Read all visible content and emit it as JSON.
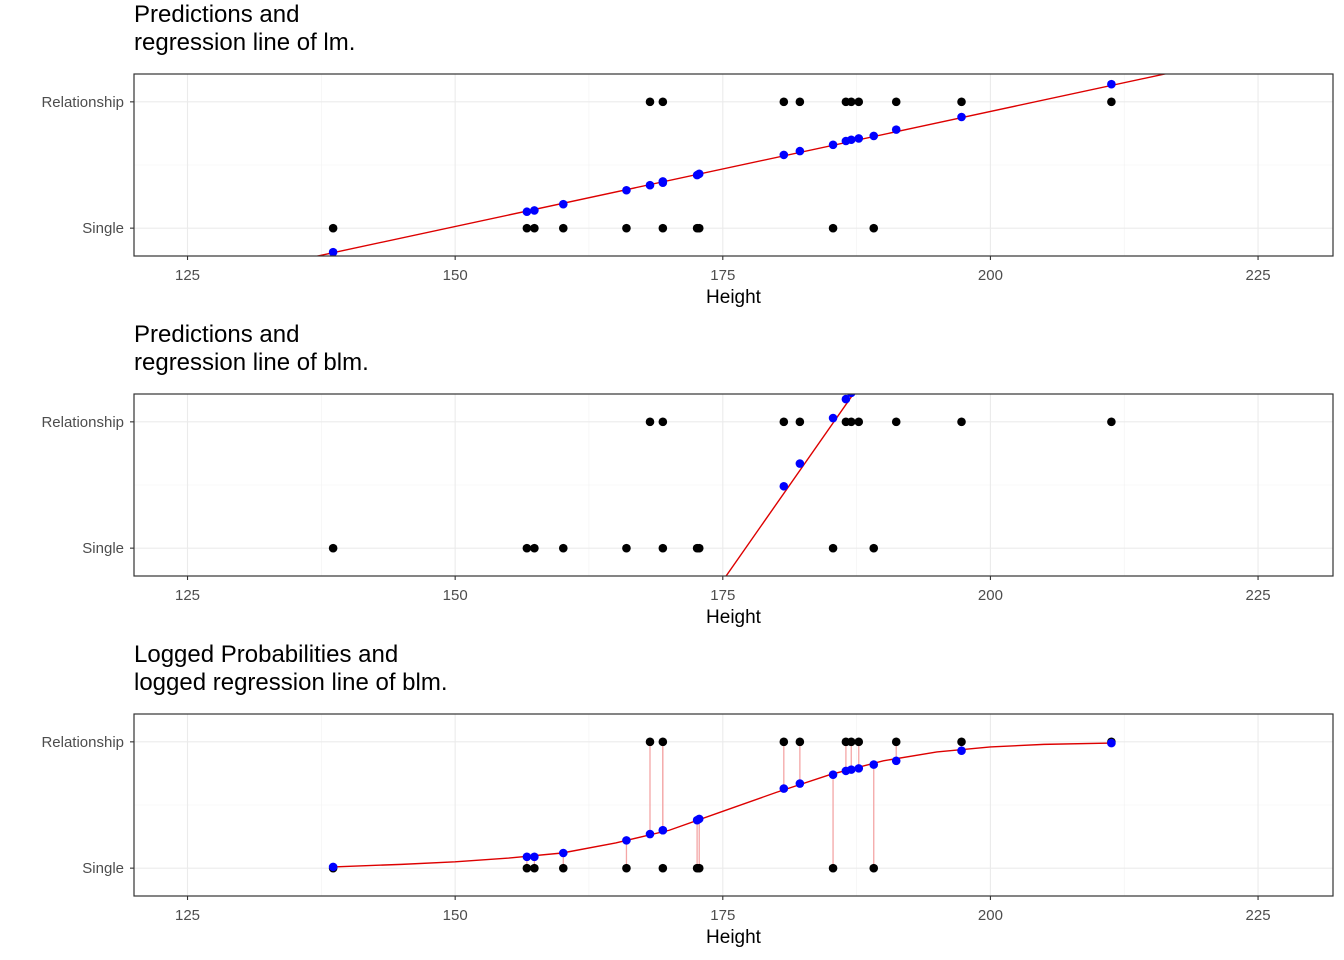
{
  "chart_data": [
    {
      "type": "scatter",
      "title_lines": [
        "Predictions and",
        "regression line of lm."
      ],
      "xlabel": "Height",
      "ylabel": "",
      "xlim": [
        120,
        232
      ],
      "x_ticks": [
        125,
        150,
        175,
        200,
        225
      ],
      "y_categories": [
        "Single",
        "Relationship"
      ],
      "grid": true,
      "observed": {
        "color": "#000000",
        "single": [
          138.6,
          156.7,
          157.4,
          160.1,
          166,
          169.4,
          172.6,
          172.8,
          185.3,
          189.1
        ],
        "relationship": [
          168.2,
          169.4,
          180.7,
          182.2,
          186.5,
          187,
          187.7,
          191.2,
          197.3,
          211.3
        ]
      },
      "predictions": {
        "color": "#0000ff",
        "points": [
          [
            138.6,
            -0.19
          ],
          [
            156.7,
            0.13
          ],
          [
            157.4,
            0.14
          ],
          [
            160.1,
            0.19
          ],
          [
            166,
            0.3
          ],
          [
            168.2,
            0.34
          ],
          [
            169.4,
            0.36
          ],
          [
            169.4,
            0.37
          ],
          [
            172.6,
            0.42
          ],
          [
            172.8,
            0.43
          ],
          [
            180.7,
            0.58
          ],
          [
            182.2,
            0.61
          ],
          [
            185.3,
            0.66
          ],
          [
            186.5,
            0.69
          ],
          [
            187,
            0.7
          ],
          [
            187.7,
            0.71
          ],
          [
            189.1,
            0.73
          ],
          [
            191.2,
            0.78
          ],
          [
            197.3,
            0.88
          ],
          [
            211.3,
            1.14
          ]
        ]
      },
      "regression_line": {
        "color": "#dd0000",
        "points": [
          [
            135,
            -0.26
          ],
          [
            219,
            1.27
          ]
        ]
      }
    },
    {
      "type": "scatter",
      "title_lines": [
        "Predictions and",
        "regression line of blm."
      ],
      "xlabel": "Height",
      "ylabel": "",
      "xlim": [
        120,
        232
      ],
      "x_ticks": [
        125,
        150,
        175,
        200,
        225
      ],
      "y_categories": [
        "Single",
        "Relationship"
      ],
      "grid": true,
      "observed": {
        "color": "#000000",
        "single": [
          138.6,
          156.7,
          157.4,
          160.1,
          166,
          169.4,
          172.6,
          172.8,
          185.3,
          189.1
        ],
        "relationship": [
          168.2,
          169.4,
          180.7,
          182.2,
          186.5,
          187,
          187.7,
          191.2,
          197.3,
          211.3
        ]
      },
      "predictions": {
        "color": "#0000ff",
        "points": [
          [
            180.7,
            0.49
          ],
          [
            182.2,
            0.67
          ],
          [
            185.3,
            1.03
          ],
          [
            186.5,
            1.18
          ],
          [
            187,
            1.23
          ]
        ]
      },
      "regression_line": {
        "color": "#dd0000",
        "points": [
          [
            174.9,
            -0.27
          ],
          [
            187.6,
            1.27
          ]
        ]
      }
    },
    {
      "type": "scatter",
      "title_lines": [
        "Logged Probabilities and",
        "logged regression line of blm."
      ],
      "xlabel": "Height",
      "ylabel": "",
      "xlim": [
        120,
        232
      ],
      "x_ticks": [
        125,
        150,
        175,
        200,
        225
      ],
      "y_categories": [
        "Single",
        "Relationship"
      ],
      "grid": true,
      "observed": {
        "color": "#000000",
        "single": [
          138.6,
          156.7,
          157.4,
          160.1,
          166,
          169.4,
          172.6,
          172.8,
          185.3,
          189.1
        ],
        "relationship": [
          168.2,
          169.4,
          180.7,
          182.2,
          186.5,
          187,
          187.7,
          191.2,
          197.3,
          211.3
        ]
      },
      "predictions": {
        "color": "#0000ff",
        "points": [
          [
            138.6,
            0.01
          ],
          [
            156.7,
            0.09
          ],
          [
            157.4,
            0.09
          ],
          [
            160.1,
            0.12
          ],
          [
            166,
            0.22
          ],
          [
            168.2,
            0.27
          ],
          [
            169.4,
            0.3
          ],
          [
            169.4,
            0.3
          ],
          [
            172.6,
            0.38
          ],
          [
            172.8,
            0.39
          ],
          [
            180.7,
            0.63
          ],
          [
            182.2,
            0.67
          ],
          [
            185.3,
            0.74
          ],
          [
            186.5,
            0.77
          ],
          [
            187,
            0.78
          ],
          [
            187.7,
            0.79
          ],
          [
            189.1,
            0.82
          ],
          [
            191.2,
            0.85
          ],
          [
            197.3,
            0.93
          ],
          [
            211.3,
            0.99
          ]
        ]
      },
      "regression_line": {
        "color": "#dd0000",
        "points": [
          [
            138.6,
            0.01
          ],
          [
            145,
            0.03
          ],
          [
            150,
            0.05
          ],
          [
            155,
            0.08
          ],
          [
            160,
            0.12
          ],
          [
            165,
            0.2
          ],
          [
            170,
            0.3
          ],
          [
            175,
            0.45
          ],
          [
            180,
            0.6
          ],
          [
            185,
            0.74
          ],
          [
            190,
            0.85
          ],
          [
            195,
            0.92
          ],
          [
            200,
            0.96
          ],
          [
            205,
            0.98
          ],
          [
            211.3,
            0.99
          ]
        ]
      },
      "residual_color": "#f4a6a6"
    }
  ]
}
